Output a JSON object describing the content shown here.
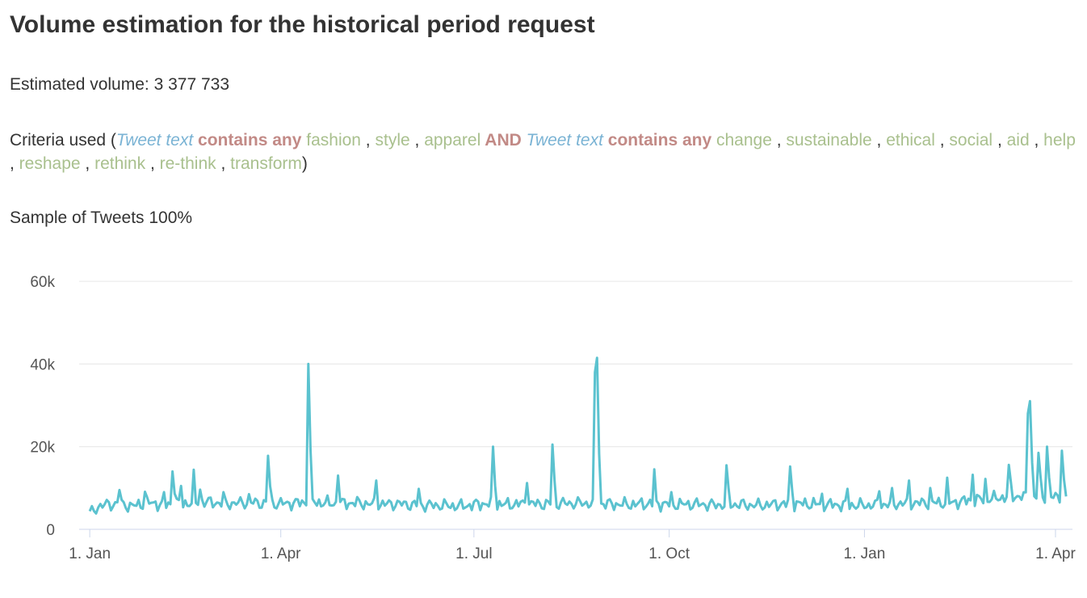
{
  "header": {
    "title": "Volume estimation for the historical period request",
    "volume_label": "Estimated volume: 3 377 733",
    "sample_label": "Sample of Tweets 100%"
  },
  "criteria": {
    "prefix": "Criteria used (",
    "suffix": ")",
    "field_color": "#7ab3d4",
    "op_color": "#c28a86",
    "term_color": "#a9c08e",
    "groups": [
      {
        "field": "Tweet text",
        "operator": "contains any",
        "terms": [
          "fashion",
          "style",
          "apparel"
        ]
      },
      {
        "field": "Tweet text",
        "operator": "contains any",
        "terms": [
          "change",
          "sustainable",
          "ethical",
          "social",
          "aid",
          "help",
          "reshape",
          "rethink",
          "re-think",
          "transform"
        ]
      }
    ],
    "joiner": "AND"
  },
  "chart_data": {
    "type": "line",
    "x_axis": "days from 1 Jan (year 1) to ~6 Apr (year 2)",
    "x_tick_labels": [
      "1. Jan",
      "1. Apr",
      "1. Jul",
      "1. Oct",
      "1. Jan",
      "1. Apr"
    ],
    "x_tick_days": [
      0,
      90,
      181,
      273,
      365,
      455
    ],
    "y_tick_labels": [
      "0",
      "20k",
      "40k",
      "60k"
    ],
    "y_ticks": [
      0,
      20000,
      40000,
      60000
    ],
    "ylim": [
      0,
      61000
    ],
    "xlim": [
      -5,
      463
    ],
    "grid": true,
    "line_color": "#5bc2cf",
    "baseline": [
      [
        0,
        3800
      ],
      [
        4,
        5500
      ],
      [
        8,
        6000
      ],
      [
        14,
        6200
      ],
      [
        20,
        5600
      ],
      [
        28,
        6400
      ],
      [
        35,
        6000
      ],
      [
        45,
        6300
      ],
      [
        55,
        6600
      ],
      [
        65,
        6200
      ],
      [
        75,
        6500
      ],
      [
        85,
        6200
      ],
      [
        95,
        6300
      ],
      [
        105,
        6600
      ],
      [
        115,
        6200
      ],
      [
        125,
        6400
      ],
      [
        135,
        6000
      ],
      [
        145,
        6200
      ],
      [
        155,
        5800
      ],
      [
        165,
        5800
      ],
      [
        175,
        5600
      ],
      [
        185,
        6200
      ],
      [
        195,
        6000
      ],
      [
        205,
        6200
      ],
      [
        215,
        6100
      ],
      [
        225,
        6300
      ],
      [
        235,
        6300
      ],
      [
        245,
        6100
      ],
      [
        255,
        6000
      ],
      [
        265,
        6300
      ],
      [
        275,
        6000
      ],
      [
        285,
        6100
      ],
      [
        295,
        5900
      ],
      [
        305,
        6000
      ],
      [
        315,
        5800
      ],
      [
        325,
        6100
      ],
      [
        335,
        6200
      ],
      [
        345,
        6000
      ],
      [
        355,
        5900
      ],
      [
        365,
        5800
      ],
      [
        375,
        6000
      ],
      [
        385,
        6300
      ],
      [
        395,
        6400
      ],
      [
        405,
        6400
      ],
      [
        415,
        7000
      ],
      [
        425,
        7400
      ],
      [
        435,
        8000
      ],
      [
        445,
        7800
      ],
      [
        455,
        7800
      ],
      [
        460,
        7500
      ]
    ],
    "peaks": [
      [
        14,
        9500
      ],
      [
        26,
        9100
      ],
      [
        35,
        9000
      ],
      [
        40,
        8600
      ],
      [
        39,
        14000
      ],
      [
        43,
        10500
      ],
      [
        49,
        14400
      ],
      [
        52,
        9600
      ],
      [
        63,
        9000
      ],
      [
        75,
        8500
      ],
      [
        84,
        17800
      ],
      [
        103,
        40000
      ],
      [
        117,
        13000
      ],
      [
        135,
        11800
      ],
      [
        155,
        9800
      ],
      [
        190,
        20000
      ],
      [
        206,
        11200
      ],
      [
        218,
        20500
      ],
      [
        238,
        38000
      ],
      [
        239,
        41500
      ],
      [
        266,
        14500
      ],
      [
        274,
        9000
      ],
      [
        300,
        15500
      ],
      [
        330,
        15200
      ],
      [
        345,
        8600
      ],
      [
        357,
        9800
      ],
      [
        372,
        9200
      ],
      [
        378,
        10000
      ],
      [
        386,
        11800
      ],
      [
        396,
        10000
      ],
      [
        404,
        12500
      ],
      [
        416,
        13200
      ],
      [
        422,
        12200
      ],
      [
        433,
        15600
      ],
      [
        442,
        28000
      ],
      [
        443,
        31000
      ],
      [
        447,
        18500
      ],
      [
        451,
        20000
      ],
      [
        458,
        19000
      ]
    ]
  }
}
